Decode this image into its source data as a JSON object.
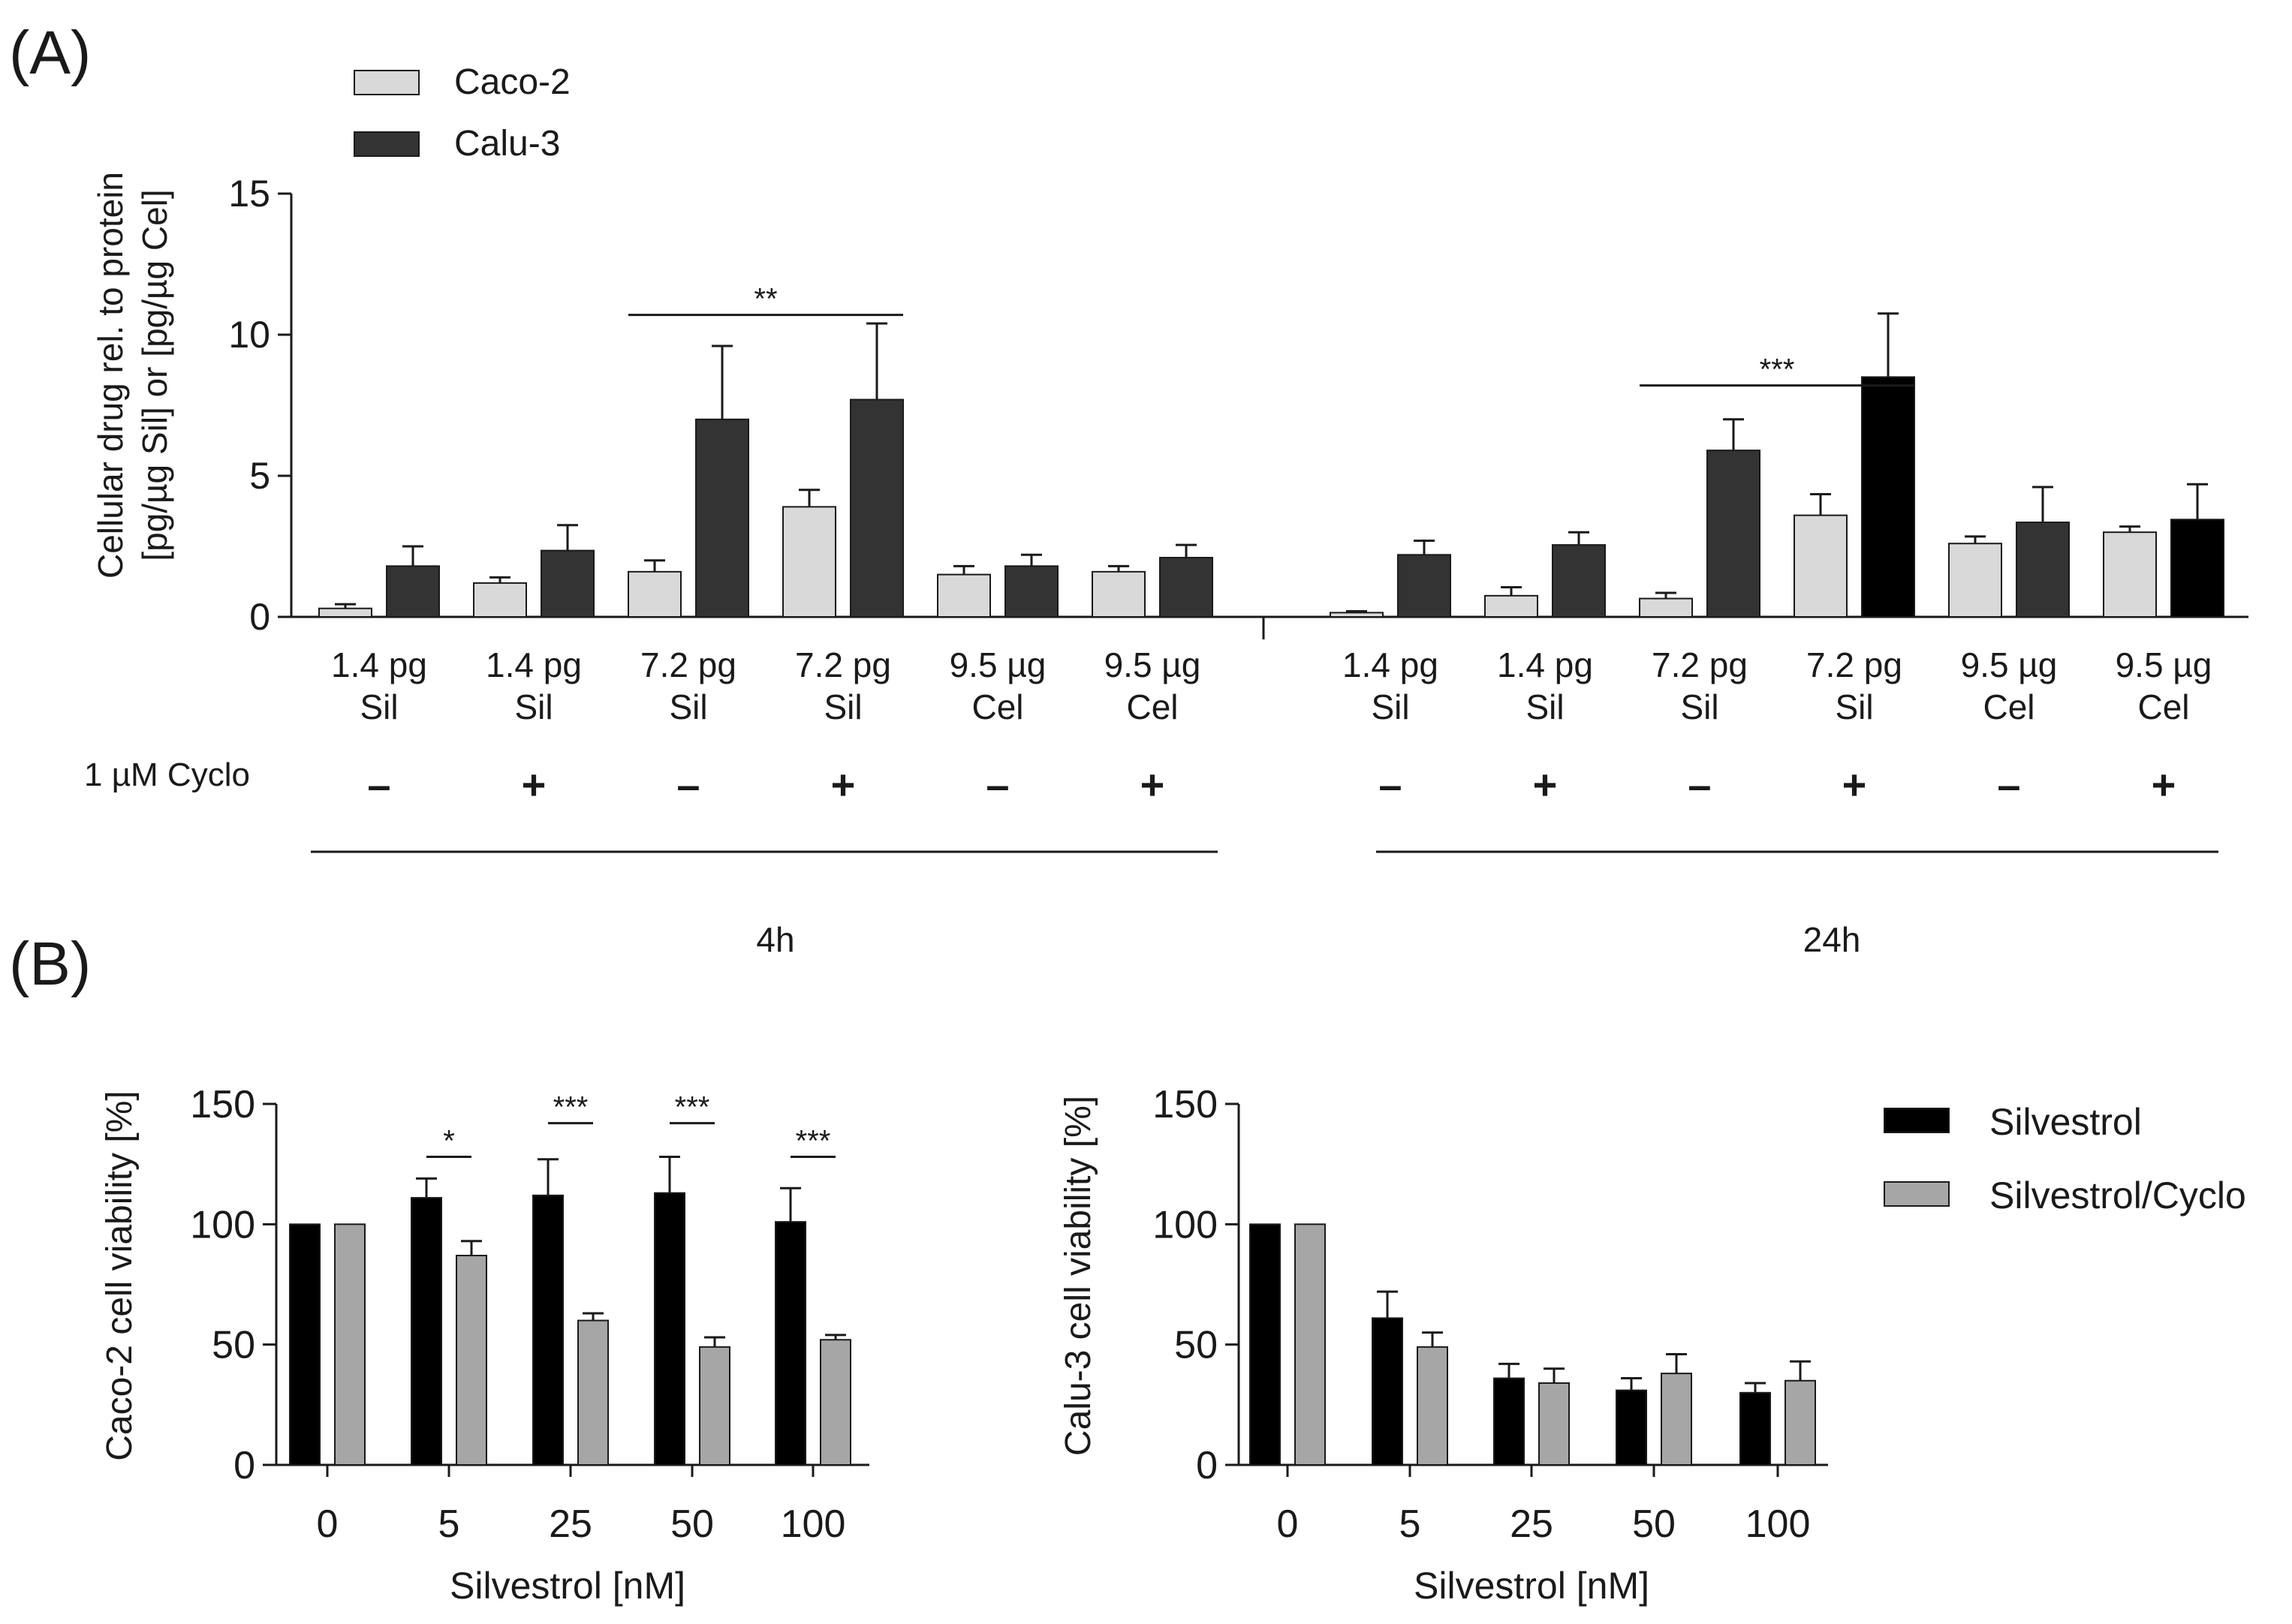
{
  "panels": {
    "a_label": "(A)",
    "b_label": "(B)"
  },
  "colors": {
    "caco2": "#d9d9d9",
    "calu3": "#333333",
    "calu3_black": "#000000",
    "silvestrol": "#000000",
    "silvestrol_cyclo": "#a6a6a6",
    "axis": "#1a1a1a"
  },
  "chart_data": [
    {
      "id": "A",
      "type": "bar",
      "title": "",
      "ylabel_line1": "Cellular drug rel. to protein",
      "ylabel_line2": "[pg/µg Sil] or [pg/µg Cel]",
      "ylim": [
        0,
        15
      ],
      "yticks": [
        "0",
        "5",
        "10",
        "15"
      ],
      "legend": [
        "Caco-2",
        "Calu-3"
      ],
      "legend_position": "top-left",
      "row_label": "1 µM Cyclo",
      "groups": [
        {
          "time": "4h",
          "categories": [
            {
              "line1": "1.4 pg",
              "line2": "Sil",
              "cyclo": "–"
            },
            {
              "line1": "1.4 pg",
              "line2": "Sil",
              "cyclo": "+"
            },
            {
              "line1": "7.2 pg",
              "line2": "Sil",
              "cyclo": "–"
            },
            {
              "line1": "7.2 pg",
              "line2": "Sil",
              "cyclo": "+"
            },
            {
              "line1": "9.5 µg",
              "line2": "Cel",
              "cyclo": "–"
            },
            {
              "line1": "9.5 µg",
              "line2": "Cel",
              "cyclo": "+"
            }
          ],
          "series": [
            {
              "name": "Caco-2",
              "values": [
                0.3,
                1.2,
                1.6,
                3.9,
                1.5,
                1.6
              ],
              "errors": [
                0.15,
                0.2,
                0.4,
                0.6,
                0.3,
                0.2
              ]
            },
            {
              "name": "Calu-3",
              "values": [
                1.8,
                2.35,
                7.0,
                7.7,
                1.8,
                2.1
              ],
              "errors": [
                0.7,
                0.9,
                2.6,
                2.7,
                0.4,
                0.45
              ]
            }
          ],
          "significance": {
            "label": "**",
            "from": 2,
            "to": 3,
            "y": 10.7
          }
        },
        {
          "time": "24h",
          "categories": [
            {
              "line1": "1.4 pg",
              "line2": "Sil",
              "cyclo": "–"
            },
            {
              "line1": "1.4 pg",
              "line2": "Sil",
              "cyclo": "+"
            },
            {
              "line1": "7.2 pg",
              "line2": "Sil",
              "cyclo": "–"
            },
            {
              "line1": "7.2 pg",
              "line2": "Sil",
              "cyclo": "+"
            },
            {
              "line1": "9.5 µg",
              "line2": "Cel",
              "cyclo": "–"
            },
            {
              "line1": "9.5 µg",
              "line2": "Cel",
              "cyclo": "+"
            }
          ],
          "series": [
            {
              "name": "Caco-2",
              "values": [
                0.15,
                0.75,
                0.65,
                3.6,
                2.6,
                3.0
              ],
              "errors": [
                0.05,
                0.3,
                0.2,
                0.75,
                0.25,
                0.2
              ]
            },
            {
              "name": "Calu-3",
              "values": [
                2.2,
                2.55,
                5.9,
                8.5,
                3.35,
                3.45
              ],
              "errors": [
                0.5,
                0.45,
                1.1,
                2.25,
                1.25,
                1.25
              ]
            }
          ],
          "significance": {
            "label": "***",
            "from": 2,
            "to": 3,
            "y": 8.2
          }
        }
      ]
    },
    {
      "id": "B-left",
      "type": "bar",
      "ylabel": "Caco-2 cell viability [%]",
      "xlabel": "Silvestrol [nM]",
      "ylim": [
        0,
        150
      ],
      "yticks": [
        "0",
        "50",
        "100",
        "150"
      ],
      "categories": [
        "0",
        "5",
        "25",
        "50",
        "100"
      ],
      "series": [
        {
          "name": "Silvestrol",
          "values": [
            100,
            111,
            112,
            113,
            101
          ],
          "errors": [
            0,
            8,
            15,
            15,
            14
          ]
        },
        {
          "name": "Silvestrol/Cyclo",
          "values": [
            100,
            87,
            60,
            49,
            52
          ],
          "errors": [
            0,
            6,
            3,
            4,
            2
          ]
        }
      ],
      "significance": [
        {
          "label": "",
          "category": 0
        },
        {
          "label": "*",
          "category": 1,
          "y": 128
        },
        {
          "label": "***",
          "category": 2,
          "y": 142
        },
        {
          "label": "***",
          "category": 3,
          "y": 142
        },
        {
          "label": "***",
          "category": 4,
          "y": 128
        }
      ]
    },
    {
      "id": "B-right",
      "type": "bar",
      "ylabel": "Calu-3 cell viability [%]",
      "xlabel": "Silvestrol [nM]",
      "ylim": [
        0,
        150
      ],
      "yticks": [
        "0",
        "50",
        "100",
        "150"
      ],
      "categories": [
        "0",
        "5",
        "25",
        "50",
        "100"
      ],
      "series": [
        {
          "name": "Silvestrol",
          "values": [
            100,
            61,
            36,
            31,
            30
          ],
          "errors": [
            0,
            11,
            6,
            5,
            4
          ]
        },
        {
          "name": "Silvestrol/Cyclo",
          "values": [
            100,
            49,
            34,
            38,
            35
          ],
          "errors": [
            0,
            6,
            6,
            8,
            8
          ]
        }
      ],
      "legend": [
        "Silvestrol",
        "Silvestrol/Cyclo"
      ],
      "legend_position": "right"
    }
  ]
}
